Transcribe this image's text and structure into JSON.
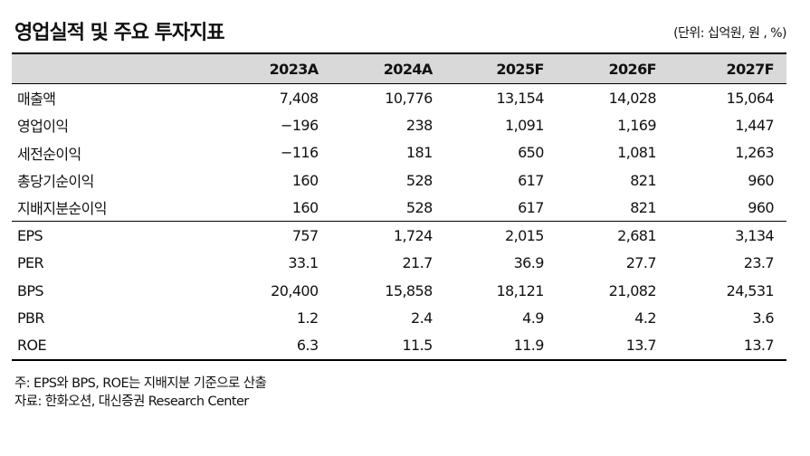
{
  "title": "영업실적 및 주요 투자지표",
  "unit": "(단위: 십억원, 원 , %)",
  "table": {
    "columns": [
      "2023A",
      "2024A",
      "2025F",
      "2026F",
      "2027F"
    ],
    "rows": [
      {
        "label": "매출액",
        "values": [
          "7,408",
          "10,776",
          "13,154",
          "14,028",
          "15,064"
        ]
      },
      {
        "label": "영업이익",
        "values": [
          "−196",
          "238",
          "1,091",
          "1,169",
          "1,447"
        ]
      },
      {
        "label": "세전순이익",
        "values": [
          "−116",
          "181",
          "650",
          "1,081",
          "1,263"
        ]
      },
      {
        "label": "총당기순이익",
        "values": [
          "160",
          "528",
          "617",
          "821",
          "960"
        ]
      },
      {
        "label": "지배지분순이익",
        "values": [
          "160",
          "528",
          "617",
          "821",
          "960"
        ]
      },
      {
        "label": "EPS",
        "values": [
          "757",
          "1,724",
          "2,015",
          "2,681",
          "3,134"
        ]
      },
      {
        "label": "PER",
        "values": [
          "33.1",
          "21.7",
          "36.9",
          "27.7",
          "23.7"
        ]
      },
      {
        "label": "BPS",
        "values": [
          "20,400",
          "15,858",
          "18,121",
          "21,082",
          "24,531"
        ]
      },
      {
        "label": "PBR",
        "values": [
          "1.2",
          "2.4",
          "4.9",
          "4.2",
          "3.6"
        ]
      },
      {
        "label": "ROE",
        "values": [
          "6.3",
          "11.5",
          "11.9",
          "13.7",
          "13.7"
        ]
      }
    ]
  },
  "notes": {
    "note": "주: EPS와 BPS, ROE는 지배지분 기준으로 산출",
    "source": "자료: 한화오션, 대신증권 Research Center"
  }
}
